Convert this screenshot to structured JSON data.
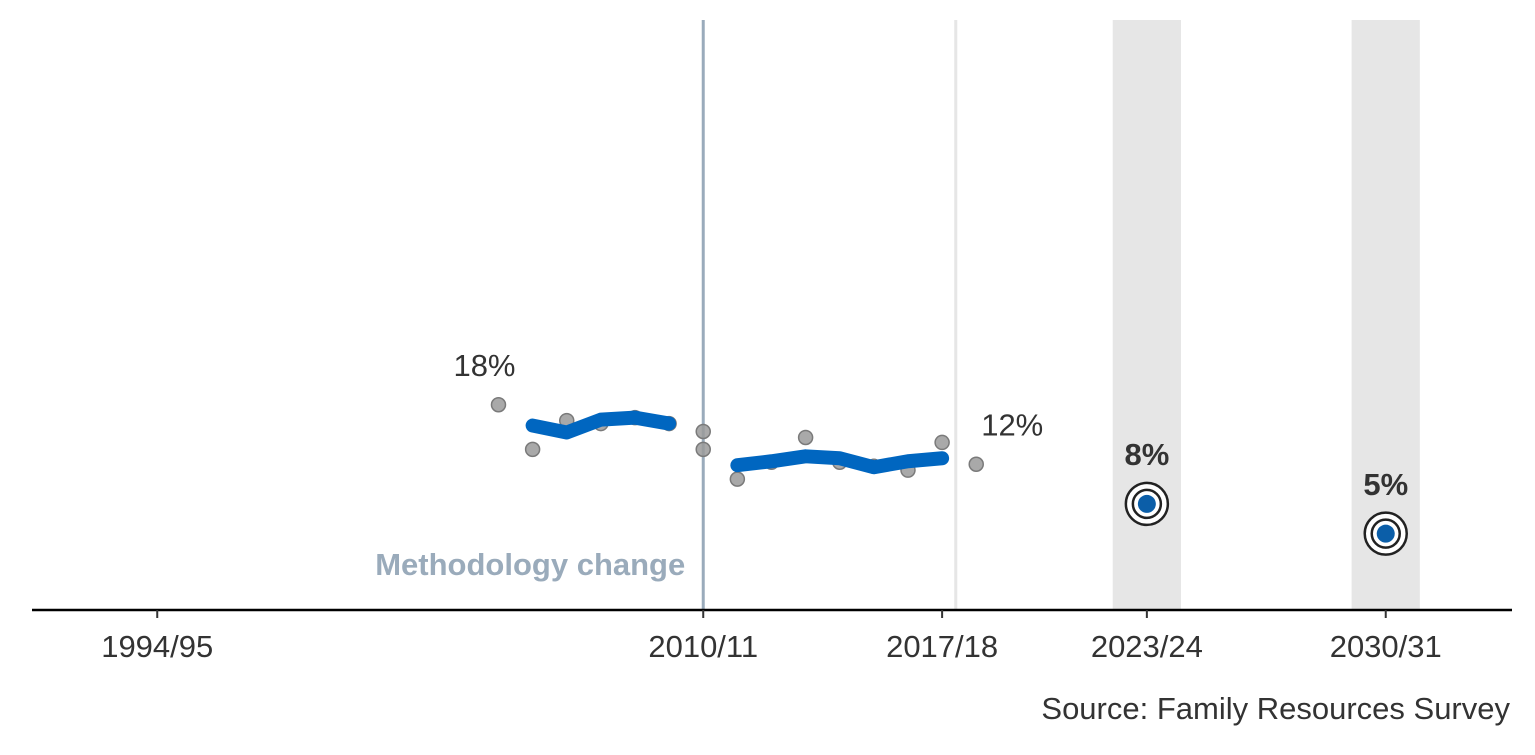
{
  "chart_data": {
    "type": "line",
    "source": "Source: Family Resources Survey",
    "xlim": [
      1990.33,
      2033.7
    ],
    "ylim": [
      -2.7,
      56.8
    ],
    "xticks": [
      {
        "value": 1994,
        "label": "1994/95"
      },
      {
        "value": 2010,
        "label": "2010/11"
      },
      {
        "value": 2017,
        "label": "2017/18"
      },
      {
        "value": 2023,
        "label": "2023/24"
      },
      {
        "value": 2030,
        "label": "2030/31"
      }
    ],
    "xlines": [
      {
        "x": 2010,
        "label": "Methodology change",
        "color": "#9aabbb"
      },
      {
        "x": 2017.4,
        "color": "#e6e6e6"
      }
    ],
    "series": [
      {
        "style": "points",
        "color": "#9a9a9a",
        "x": [
          2004,
          2005,
          2006,
          2007,
          2008,
          2009,
          2010,
          2010,
          2011,
          2012,
          2013,
          2014,
          2015,
          2016,
          2017,
          2018
        ],
        "values": [
          18,
          13.5,
          16.4,
          16.1,
          16.7,
          16.1,
          15.3,
          13.5,
          10.5,
          12.2,
          14.7,
          12.2,
          11.8,
          11.4,
          14.2,
          12
        ],
        "value_labels": [
          "18%",
          null,
          null,
          null,
          null,
          null,
          null,
          null,
          null,
          null,
          null,
          null,
          null,
          null,
          null,
          "12%"
        ]
      },
      {
        "style": "trend",
        "color": "#0066c0",
        "x": [
          2005,
          2006,
          2007,
          2008,
          2009,
          2010,
          2011,
          2012,
          2013,
          2014,
          2015,
          2016,
          2017
        ],
        "values": [
          15.9,
          15.2,
          16.5,
          16.7,
          16.1,
          null,
          11.9,
          12.3,
          12.8,
          12.6,
          11.7,
          12.3,
          12.6
        ]
      },
      {
        "style": "targets",
        "color": "#0b5ea8",
        "band_color": "#e6e6e6",
        "x": [
          2023,
          2030
        ],
        "values": [
          8,
          5
        ],
        "value_labels": [
          "8%",
          "5%"
        ]
      }
    ]
  }
}
